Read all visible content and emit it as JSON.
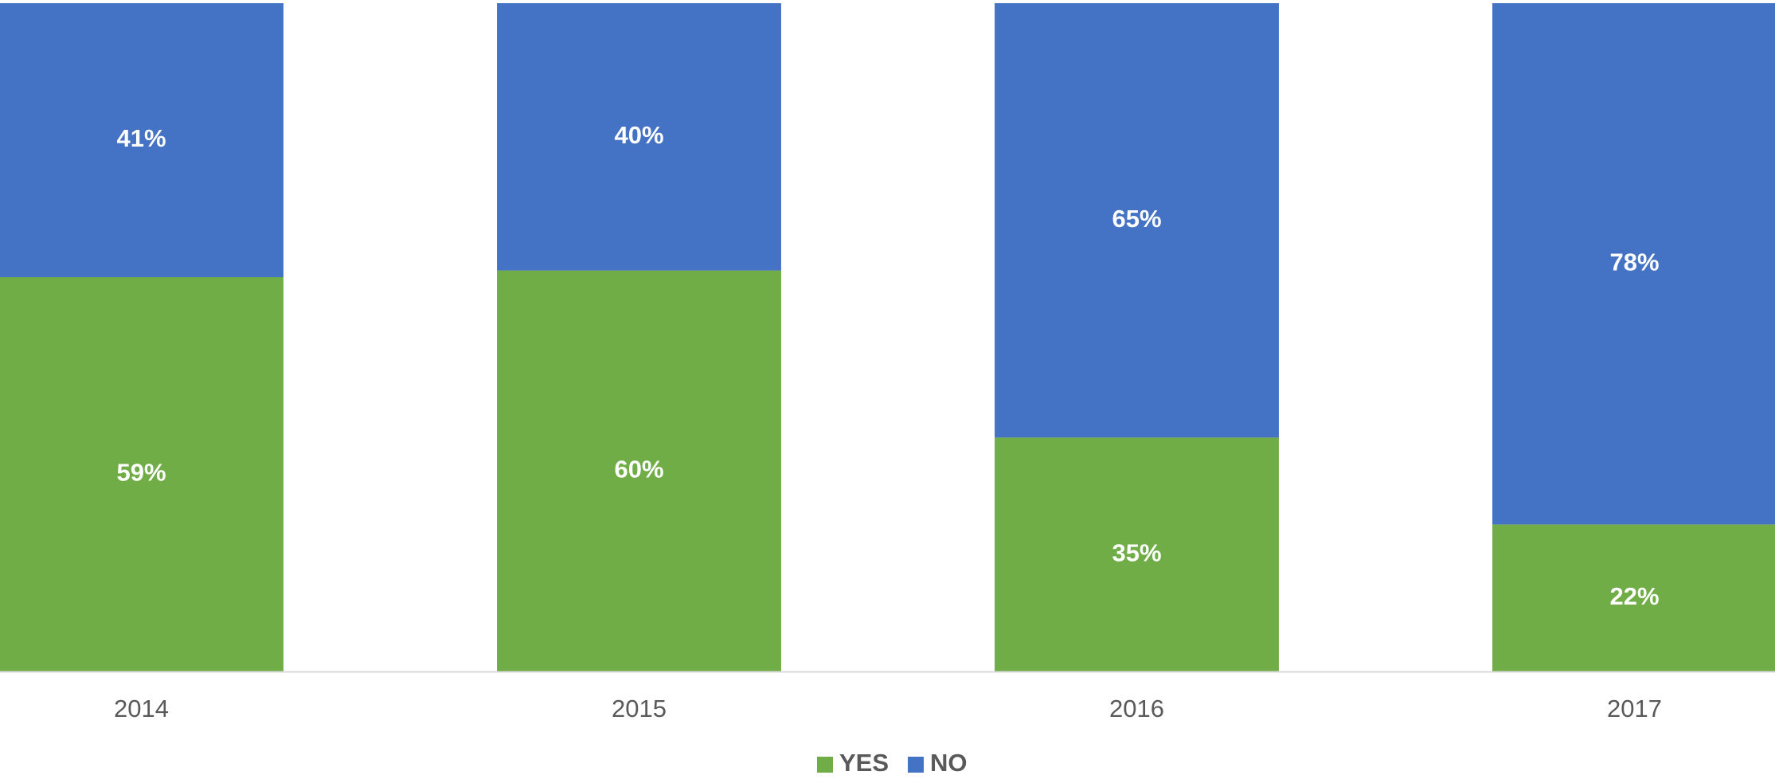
{
  "chart_data": {
    "type": "stacked_bar",
    "categories": [
      "2014",
      "2015",
      "2016",
      "2017"
    ],
    "series": [
      {
        "name": "YES",
        "color": "#70ad47",
        "values": [
          59,
          60,
          35,
          22
        ],
        "value_labels": [
          "59%",
          "60%",
          "35%",
          "22%"
        ]
      },
      {
        "name": "NO",
        "color": "#4472c4",
        "values": [
          41,
          40,
          65,
          78
        ],
        "value_labels": [
          "41%",
          "40%",
          "65%",
          "78%"
        ]
      }
    ],
    "ylim": [
      0,
      100
    ],
    "legend": "bottom"
  }
}
